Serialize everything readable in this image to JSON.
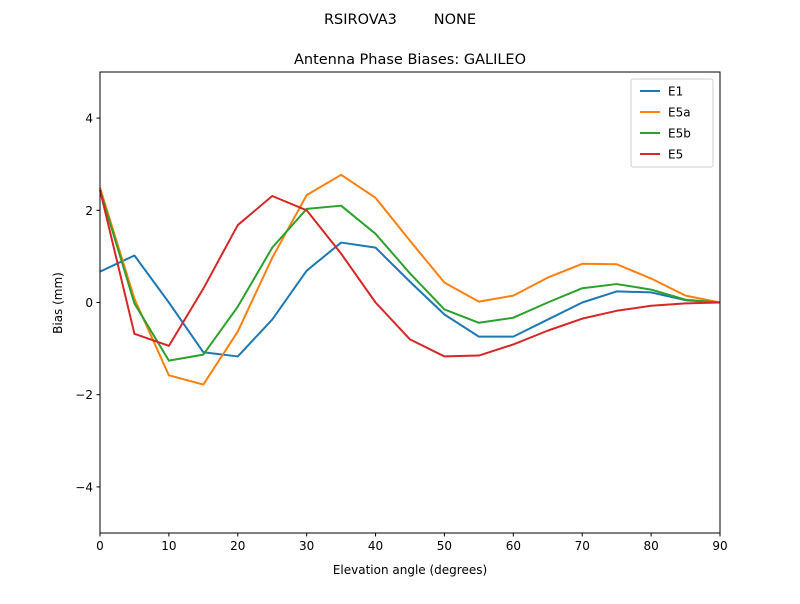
{
  "chart_data": {
    "type": "line",
    "suptitle": "RSIROVA3        NONE",
    "title": "Antenna Phase Biases: GALILEO",
    "xlabel": "Elevation angle (degrees)",
    "ylabel": "Bias (mm)",
    "xlim": [
      0,
      90
    ],
    "ylim": [
      -5,
      5
    ],
    "xticks": [
      0,
      10,
      20,
      30,
      40,
      50,
      60,
      70,
      80,
      90
    ],
    "yticks": [
      -4,
      -2,
      0,
      2,
      4
    ],
    "ytick_labels": [
      "−4",
      "−2",
      "0",
      "2",
      "4"
    ],
    "grid": false,
    "legend_position": "top-right",
    "x": [
      0,
      5,
      10,
      15,
      20,
      25,
      30,
      35,
      40,
      45,
      50,
      55,
      60,
      65,
      70,
      75,
      80,
      85,
      90
    ],
    "series": [
      {
        "name": "E1",
        "color": "#1f77b4",
        "values": [
          0.67,
          1.02,
          0.0,
          -1.08,
          -1.17,
          -0.37,
          0.69,
          1.3,
          1.19,
          0.45,
          -0.26,
          -0.74,
          -0.74,
          -0.37,
          0.0,
          0.24,
          0.22,
          0.05,
          0.0
        ]
      },
      {
        "name": "E5a",
        "color": "#ff7f0e",
        "values": [
          2.49,
          0.08,
          -1.58,
          -1.78,
          -0.63,
          0.97,
          2.33,
          2.77,
          2.27,
          1.34,
          0.43,
          0.02,
          0.15,
          0.54,
          0.84,
          0.83,
          0.52,
          0.15,
          0.0
        ]
      },
      {
        "name": "E5b",
        "color": "#2ca02c",
        "values": [
          2.44,
          -0.02,
          -1.26,
          -1.13,
          -0.09,
          1.19,
          2.03,
          2.1,
          1.49,
          0.63,
          -0.15,
          -0.44,
          -0.33,
          0.0,
          0.31,
          0.4,
          0.28,
          0.06,
          0.0
        ]
      },
      {
        "name": "E5",
        "color": "#d62728",
        "values": [
          2.44,
          -0.68,
          -0.94,
          0.3,
          1.68,
          2.31,
          2.0,
          1.06,
          0.0,
          -0.8,
          -1.17,
          -1.15,
          -0.91,
          -0.61,
          -0.35,
          -0.18,
          -0.07,
          -0.02,
          0.0
        ]
      }
    ]
  }
}
